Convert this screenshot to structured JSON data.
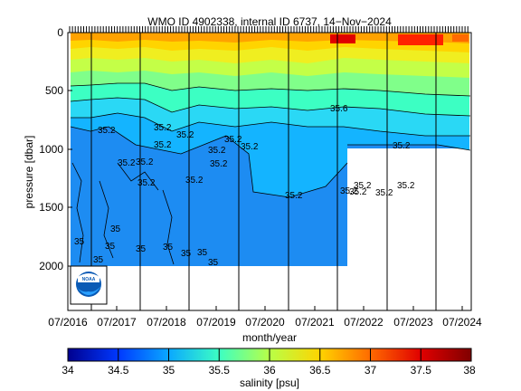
{
  "chart_data": {
    "type": "heatmap",
    "title": "WMO ID 4902338, internal ID 6737, 14−Nov−2024",
    "xlabel": "month/year",
    "ylabel": "pressure [dbar]",
    "x_ticks": [
      "07/2016",
      "07/2017",
      "07/2018",
      "07/2019",
      "07/2020",
      "07/2021",
      "07/2022",
      "07/2023",
      "07/2024"
    ],
    "y_ticks": [
      "0",
      "500",
      "1000",
      "1500",
      "2000"
    ],
    "ylim": [
      2400,
      0
    ],
    "xlim": [
      "2016-07",
      "2024-09"
    ],
    "grid": false,
    "vertical_lines_at": [
      "2017-01",
      "2018-01",
      "2019-01",
      "2020-01",
      "2021-01",
      "2022-01",
      "2023-01",
      "2024-01"
    ],
    "deep_profiles_until": "2022-01",
    "max_depth_deep": 2000,
    "max_depth_shallow": 1000,
    "colorbar": {
      "label": "salinity [psu]",
      "range": [
        34,
        38
      ],
      "ticks": [
        "34",
        "34.5",
        "35",
        "35.5",
        "36",
        "36.5",
        "37",
        "37.5",
        "38"
      ]
    },
    "contour_labels": [
      "35",
      "35.2",
      "35.6"
    ],
    "colors": {
      "c34": "#00008f",
      "c34_5": "#0038ff",
      "c35": "#0aa8ff",
      "c35_5": "#3cffc3",
      "c36": "#b8ff47",
      "c36_5": "#ffd400",
      "c37": "#ff6a00",
      "c37_5": "#e00000",
      "c38": "#800000"
    }
  },
  "logo": {
    "icon": "noaa-logo-icon",
    "text": "NOAA"
  }
}
